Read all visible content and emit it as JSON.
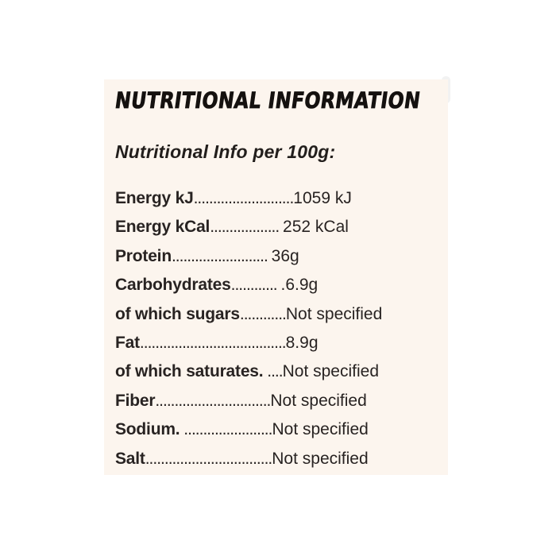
{
  "label_panel": {
    "title": "NUTRITIONAL INFORMATION",
    "subtitle": "Nutritional Info per 100g:",
    "rows": [
      {
        "label": "Energy kJ",
        "dots": "..........................",
        "value": "1059 kJ"
      },
      {
        "label": "Energy kCal",
        "dots": ".................. ",
        "value": "252 kCal"
      },
      {
        "label": "Protein",
        "dots": "......................... ",
        "value": "36g"
      },
      {
        "label": "Carbohydrates",
        "dots": "............ ",
        "value": ".6.9g"
      },
      {
        "label": "of which sugars",
        "dots": "............",
        "value": "Not specified"
      },
      {
        "label": "Fat",
        "dots": "......................................",
        "value": "8.9g"
      },
      {
        "label": "of which saturates.",
        "dots": " ....",
        "value": "Not specified"
      },
      {
        "label": "Fiber",
        "dots": "..............................",
        "value": "Not specified"
      },
      {
        "label": "Sodium.",
        "dots": " .......................",
        "value": "Not specified"
      },
      {
        "label": "Salt",
        "dots": ".................................",
        "value": "Not specified"
      }
    ]
  },
  "colors": {
    "page_background": "#ffffff",
    "panel_background": "#fcf5ee",
    "title_text": "#14110f",
    "body_text": "#282322"
  }
}
